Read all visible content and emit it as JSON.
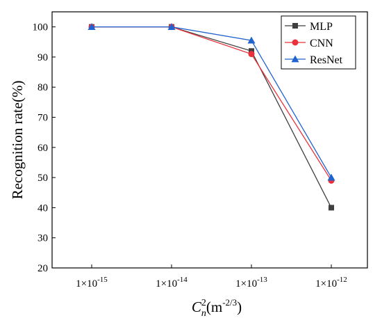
{
  "chart_data": {
    "type": "line",
    "categories": [
      "1×10^-15",
      "1×10^-14",
      "1×10^-13",
      "1×10^-12"
    ],
    "x_ticks": [
      {
        "base": "1×10",
        "exp": "-15"
      },
      {
        "base": "1×10",
        "exp": "-14"
      },
      {
        "base": "1×10",
        "exp": "-13"
      },
      {
        "base": "1×10",
        "exp": "-12"
      }
    ],
    "xlabel": {
      "symbol": "C",
      "sup": "2",
      "sub": "n",
      "unit_open": "(m",
      "unit_exp": "-2/3",
      "unit_close": ")"
    },
    "ylabel": "Recognition rate(%)",
    "ylim": [
      20,
      105
    ],
    "yticks": [
      20,
      30,
      40,
      50,
      60,
      70,
      80,
      90,
      100
    ],
    "legend_position": "top-right",
    "series": [
      {
        "name": "MLP",
        "values": [
          100,
          100,
          92,
          40
        ],
        "color": "#3f3f3f",
        "marker": "square"
      },
      {
        "name": "CNN",
        "values": [
          100,
          100,
          91,
          49
        ],
        "color": "#e8313a",
        "marker": "circle"
      },
      {
        "name": "ResNet",
        "values": [
          100,
          100,
          95.5,
          50
        ],
        "color": "#1f63cf",
        "marker": "triangle"
      }
    ]
  }
}
